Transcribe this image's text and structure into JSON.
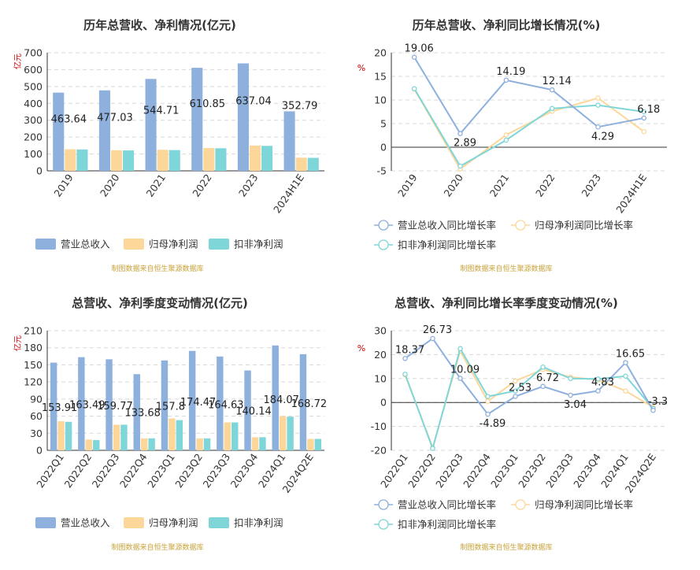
{
  "colors": {
    "revenue": "#8eb0dd",
    "parent_profit": "#fdd79a",
    "deducted_profit": "#7fd6d8",
    "grid": "#d8d8d8",
    "axis": "#333333",
    "unit_label": "#cc0000",
    "source": "#c8a23a",
    "title": "#333333"
  },
  "chart_data": [
    {
      "type": "bar",
      "title": "历年总营收、净利情况(亿元)",
      "ylabel": "亿元",
      "ylim": [
        0,
        700
      ],
      "yticks": [
        "0",
        "100",
        "200",
        "300",
        "400",
        "500",
        "600",
        "700"
      ],
      "categories": [
        "2019",
        "2020",
        "2021",
        "2022",
        "2023",
        "2024H1E"
      ],
      "series": [
        {
          "name": "营业总收入",
          "values": [
            463.64,
            477.03,
            544.71,
            610.85,
            637.04,
            352.79
          ],
          "labels": [
            "463.64",
            "477.03",
            "544.71",
            "610.85",
            "637.04",
            "352.79"
          ]
        },
        {
          "name": "归母净利润",
          "values": [
            128,
            122,
            125,
            135,
            150,
            78
          ]
        },
        {
          "name": "扣非净利润",
          "values": [
            127,
            121,
            123,
            134,
            148,
            77
          ]
        }
      ],
      "source": "制图数据来自恒生聚源数据库"
    },
    {
      "type": "line",
      "title": "历年总营收、净利同比增长情况(%)",
      "ylabel": "%",
      "ylim": [
        -5,
        20
      ],
      "yticks": [
        "-5",
        "0",
        "5",
        "10",
        "15",
        "20"
      ],
      "categories": [
        "2019",
        "2020",
        "2021",
        "2022",
        "2023",
        "2024H1E"
      ],
      "series": [
        {
          "name": "营业总收入同比增长率",
          "values": [
            19.06,
            2.89,
            14.19,
            12.14,
            4.29,
            6.18
          ],
          "labels": [
            "19.06",
            "2.89",
            "14.19",
            "12.14",
            "4.29",
            "6.18"
          ]
        },
        {
          "name": "归母净利润同比增长率",
          "values": [
            12.3,
            -4.6,
            2.6,
            7.6,
            10.4,
            3.3
          ]
        },
        {
          "name": "扣非净利润同比增长率",
          "values": [
            12.4,
            -4.0,
            1.5,
            8.2,
            8.9,
            7.5
          ]
        }
      ],
      "source": "制图数据来自恒生聚源数据库"
    },
    {
      "type": "bar",
      "title": "总营收、净利季度变动情况(亿元)",
      "ylabel": "亿元",
      "ylim": [
        0,
        210
      ],
      "yticks": [
        "0",
        "30",
        "60",
        "90",
        "120",
        "150",
        "180",
        "210"
      ],
      "categories": [
        "2022Q1",
        "2022Q2",
        "2022Q3",
        "2022Q4",
        "2023Q1",
        "2023Q2",
        "2023Q3",
        "2023Q4",
        "2024Q1",
        "2024Q2E"
      ],
      "series": [
        {
          "name": "营业总收入",
          "values": [
            153.91,
            163.49,
            159.77,
            133.68,
            157.8,
            174.47,
            164.63,
            140.14,
            184.07,
            168.72
          ],
          "labels": [
            "153.91",
            "163.49",
            "159.77",
            "133.68",
            "157.8",
            "174.47",
            "164.63",
            "140.14",
            "184.07",
            "168.72"
          ]
        },
        {
          "name": "归母净利润",
          "values": [
            51,
            19,
            45,
            21,
            56,
            21,
            49,
            23,
            60,
            20
          ]
        },
        {
          "name": "扣非净利润",
          "values": [
            50,
            18,
            45,
            21,
            53,
            21,
            49,
            23,
            59,
            20
          ]
        }
      ],
      "source": "制图数据来自恒生聚源数据库"
    },
    {
      "type": "line",
      "title": "总营收、净利同比增长率季度变动情况(%)",
      "ylabel": "%",
      "ylim": [
        -20,
        30
      ],
      "yticks": [
        "-20",
        "-10",
        "0",
        "10",
        "20",
        "30"
      ],
      "categories": [
        "2022Q1",
        "2022Q2",
        "2022Q3",
        "2022Q4",
        "2023Q1",
        "2023Q2",
        "2023Q3",
        "2023Q4",
        "2024Q1",
        "2024Q2E"
      ],
      "series": [
        {
          "name": "营业总收入同比增长率",
          "values": [
            18.37,
            26.73,
            10.09,
            -4.89,
            2.53,
            6.72,
            3.04,
            4.83,
            16.65,
            -3.3
          ],
          "labels": [
            "18.37",
            "26.73",
            "10.09",
            "-4.89",
            "2.53",
            "6.72",
            "3.04",
            "4.83",
            "16.65",
            "-3.3"
          ]
        },
        {
          "name": "归母净利润同比增长率",
          "values": [
            11.5,
            -18.8,
            21.5,
            0.5,
            9.0,
            13.8,
            10.6,
            9.5,
            4.8,
            -2.0
          ]
        },
        {
          "name": "扣非净利润同比增长率",
          "values": [
            11.8,
            -19.2,
            22.5,
            2.5,
            4.8,
            14.8,
            10.0,
            9.8,
            11.0,
            -2.5
          ]
        }
      ],
      "source": "制图数据来自恒生聚源数据库"
    }
  ]
}
